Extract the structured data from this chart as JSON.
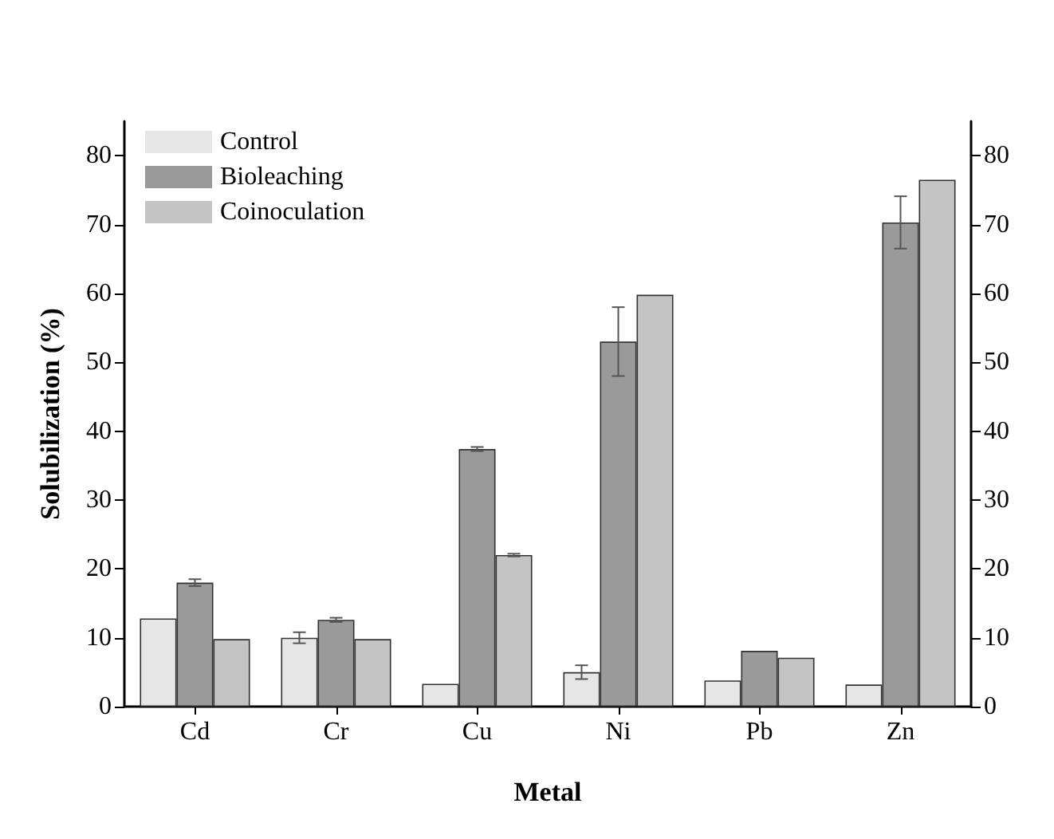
{
  "chart_data": {
    "type": "bar",
    "xlabel": "Metal",
    "ylabel": "Solubilization (%)",
    "categories": [
      "Cd",
      "Cr",
      "Cu",
      "Ni",
      "Pb",
      "Zn"
    ],
    "series": [
      {
        "name": "Control",
        "color": "#e6e6e6",
        "values": [
          12.8,
          10,
          3.3,
          5,
          3.8,
          3.2
        ],
        "errors": [
          null,
          0.8,
          null,
          1,
          null,
          null
        ]
      },
      {
        "name": "Bioleaching",
        "color": "#9a9a9a",
        "values": [
          18,
          12.6,
          37.4,
          53,
          8.1,
          70.3
        ],
        "errors": [
          0.5,
          0.3,
          0.3,
          5,
          null,
          3.8
        ]
      },
      {
        "name": "Coinoculation",
        "color": "#c4c4c4",
        "values": [
          9.8,
          9.8,
          22,
          59.8,
          7.1,
          76.5
        ],
        "errors": [
          null,
          null,
          0.2,
          null,
          null,
          null
        ]
      }
    ],
    "ylim": [
      0,
      85
    ],
    "yticks": [
      0,
      10,
      20,
      30,
      40,
      50,
      60,
      70,
      80
    ],
    "y2lim": [
      0,
      85
    ],
    "y2ticks": [
      0,
      10,
      20,
      30,
      40,
      50,
      60,
      70,
      80
    ],
    "grid": false,
    "legend": "top left"
  }
}
